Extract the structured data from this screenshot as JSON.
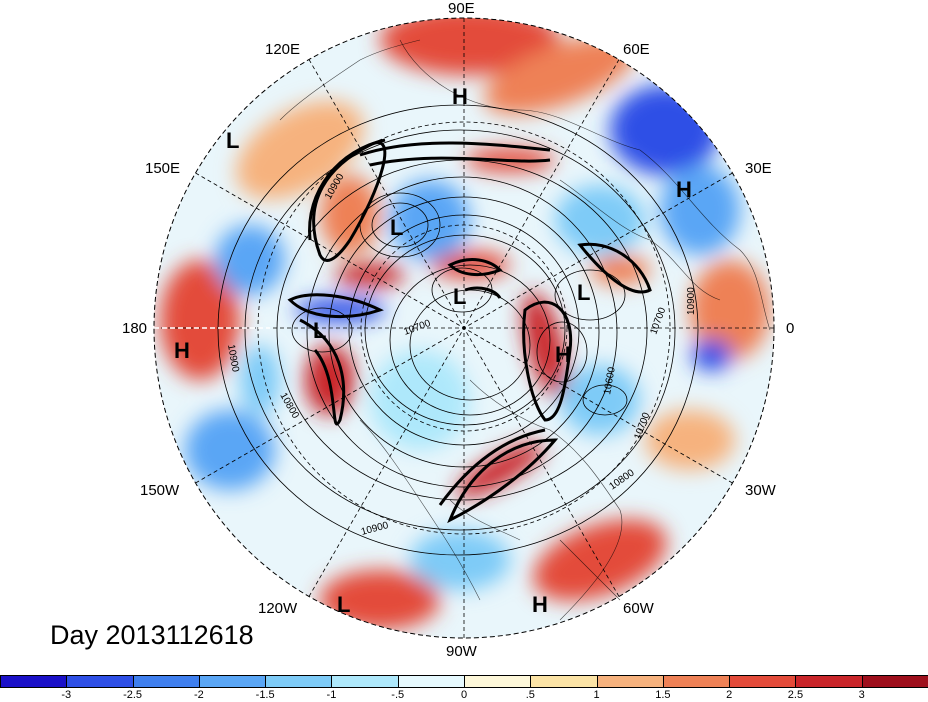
{
  "map": {
    "longitude_labels": [
      {
        "name": "lon-90e",
        "text": "90E"
      },
      {
        "name": "lon-60e",
        "text": "60E"
      },
      {
        "name": "lon-30e",
        "text": "30E"
      },
      {
        "name": "lon-0",
        "text": "0"
      },
      {
        "name": "lon-30w",
        "text": "30W"
      },
      {
        "name": "lon-60w",
        "text": "60W"
      },
      {
        "name": "lon-90w",
        "text": "90W"
      },
      {
        "name": "lon-120w",
        "text": "120W"
      },
      {
        "name": "lon-150w",
        "text": "150W"
      },
      {
        "name": "lon-180",
        "text": "180"
      },
      {
        "name": "lon-150e",
        "text": "150E"
      },
      {
        "name": "lon-120e",
        "text": "120E"
      }
    ],
    "pressure_centers": [
      "H",
      "L",
      "H",
      "L",
      "L",
      "L",
      "L",
      "H",
      "H",
      "L",
      "H"
    ],
    "contour_labels": [
      "10900",
      "10900",
      "10800",
      "10800",
      "10700",
      "10700",
      "10700",
      "10600",
      "10900",
      "10900",
      "10800",
      "10900"
    ],
    "date_label": "Day 2013112618"
  },
  "colorbar": {
    "ticks": [
      "-3",
      "-2.5",
      "-2",
      "-1.5",
      "-1",
      "-.5",
      "0",
      ".5",
      "1",
      "1.5",
      "2",
      "2.5",
      "3"
    ],
    "colors": [
      "#1a10c8",
      "#2e4fe6",
      "#3f7fee",
      "#5aa6f5",
      "#7ecbf7",
      "#aee8fb",
      "#e6f9fe",
      "#fdf7d9",
      "#fbe3a6",
      "#f6b27e",
      "#ee8156",
      "#e34b3a",
      "#c9252a",
      "#9e0f1c"
    ]
  }
}
